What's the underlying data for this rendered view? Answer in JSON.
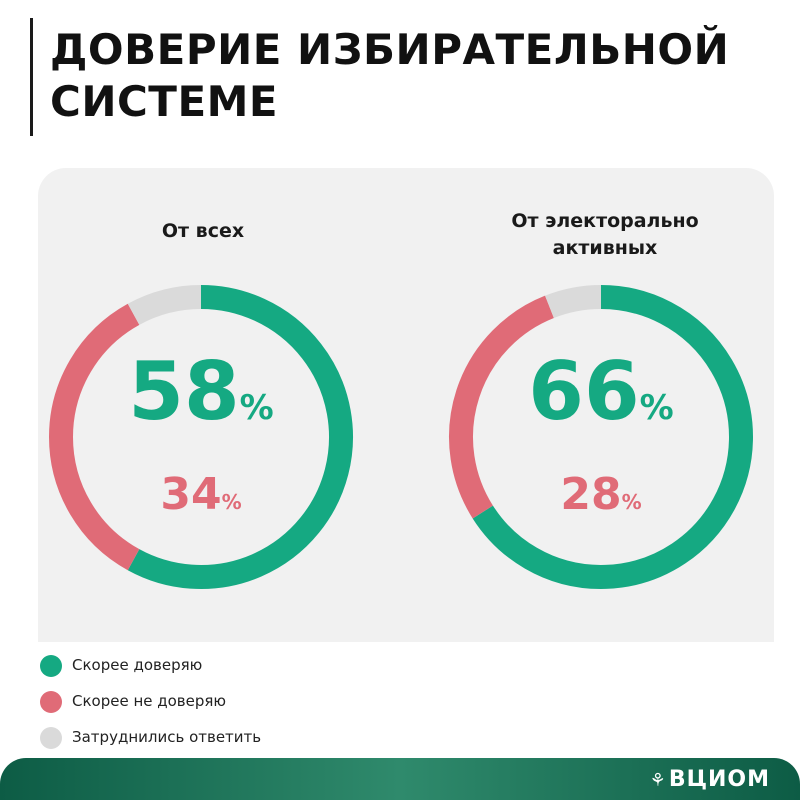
{
  "title": {
    "line1": "ДОВЕРИЕ ИЗБИРАТЕЛЬНОЙ",
    "line2": "СИСТЕМЕ"
  },
  "colors": {
    "trust": "#15a982",
    "distrust": "#e06b77",
    "undecided": "#dadada",
    "text": "#111111"
  },
  "chart_data": [
    {
      "type": "pie",
      "title": "От всех",
      "title_lines": [
        "От всех",
        ""
      ],
      "series": [
        {
          "name": "Скорее доверяю",
          "value": 58
        },
        {
          "name": "Скорее не доверяю",
          "value": 34
        },
        {
          "name": "Затруднились ответить",
          "value": 8
        }
      ],
      "labels": {
        "main": "58",
        "secondary": "34",
        "unit": "%"
      }
    },
    {
      "type": "pie",
      "title": "От электорально активных",
      "title_lines": [
        "От электорально",
        "активных"
      ],
      "series": [
        {
          "name": "Скорее доверяю",
          "value": 66
        },
        {
          "name": "Скорее не доверяю",
          "value": 28
        },
        {
          "name": "Затруднились ответить",
          "value": 6
        }
      ],
      "labels": {
        "main": "66",
        "secondary": "28",
        "unit": "%"
      }
    }
  ],
  "legend": [
    {
      "label": "Скорее доверяю",
      "color": "#15a982"
    },
    {
      "label": "Скорее не доверяю",
      "color": "#e06b77"
    },
    {
      "label": "Затруднились ответить",
      "color": "#dadada"
    }
  ],
  "footer": {
    "logo": "ВЦИОМ",
    "logo_icon": "sprout-logo-icon"
  }
}
